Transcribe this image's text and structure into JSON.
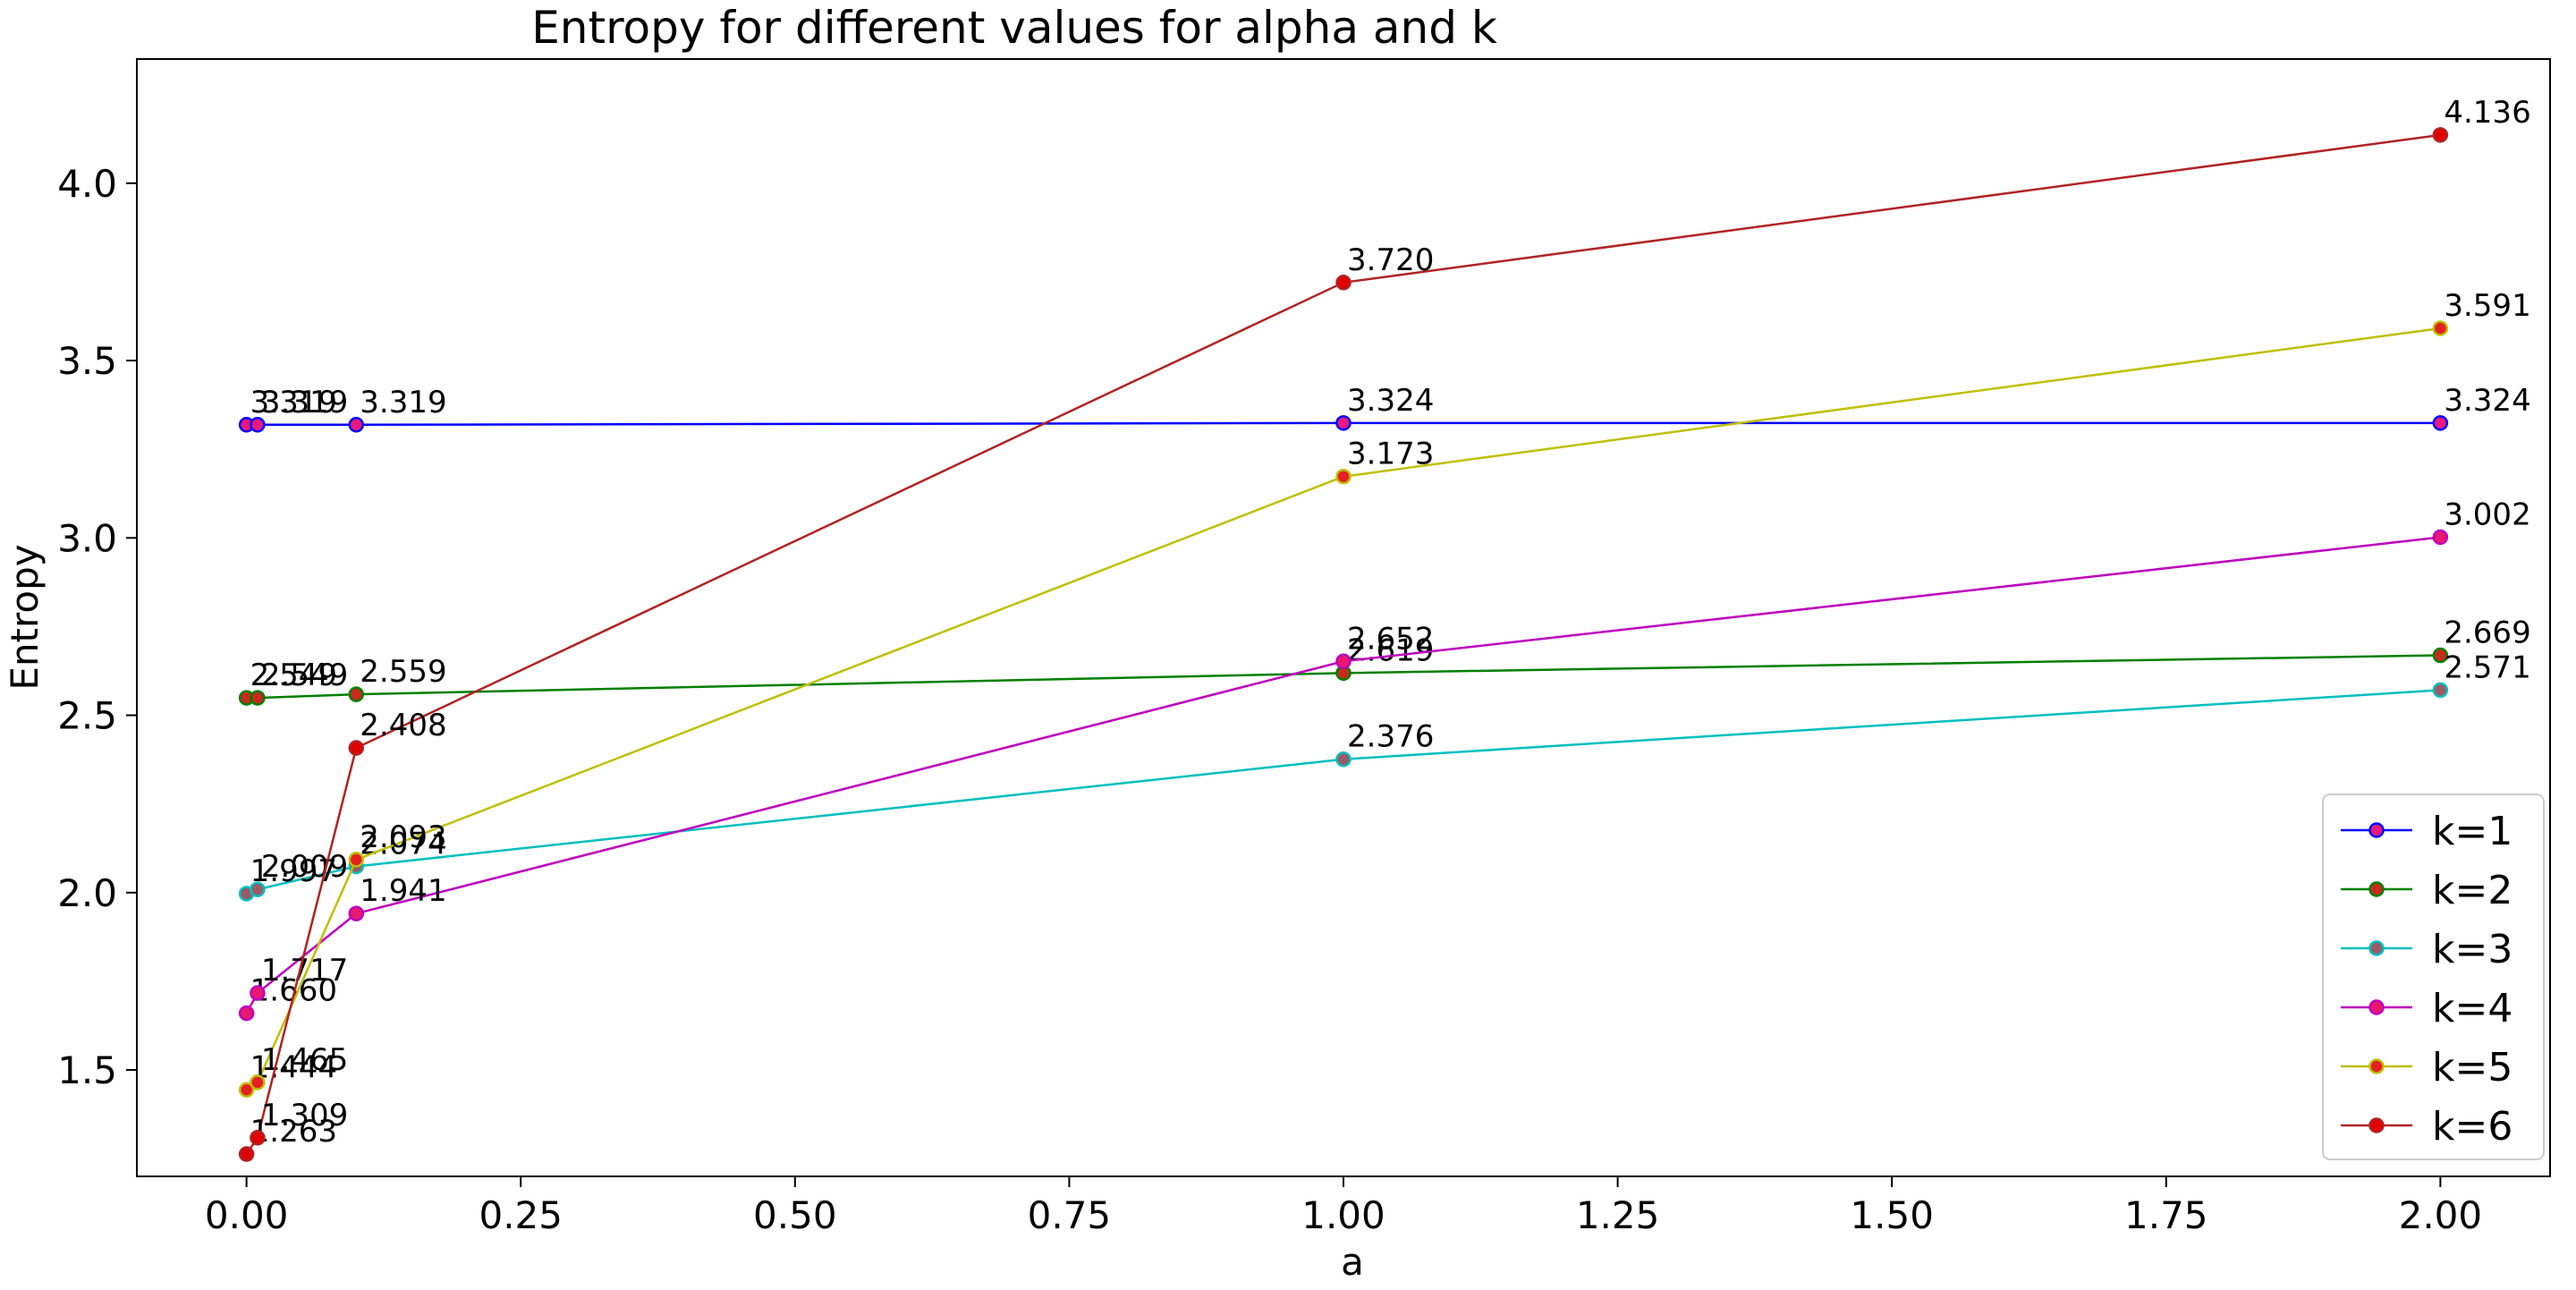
{
  "chart_data": {
    "type": "line",
    "title": "Entropy for different values for alpha and k",
    "xlabel": "a",
    "ylabel": "Entropy",
    "x": [
      0,
      0.01,
      0.1,
      1,
      2
    ],
    "xlim": [
      -0.1,
      2.1
    ],
    "ylim": [
      1.2,
      4.35
    ],
    "xticks": [
      0.0,
      0.25,
      0.5,
      0.75,
      1.0,
      1.25,
      1.5,
      1.75,
      2.0
    ],
    "xtick_labels": [
      "0.00",
      "0.25",
      "0.50",
      "0.75",
      "1.00",
      "1.25",
      "1.50",
      "1.75",
      "2.00"
    ],
    "yticks": [
      1.5,
      2.0,
      2.5,
      3.0,
      3.5,
      4.0
    ],
    "ytick_labels": [
      "1.5",
      "2.0",
      "2.5",
      "3.0",
      "3.5",
      "4.0"
    ],
    "grid": false,
    "legend_position": "lower right",
    "series": [
      {
        "name": "k=1",
        "color": "#0000ff",
        "marker_face": "#e8187f",
        "values": [
          3.319,
          3.319,
          3.319,
          3.324,
          3.324
        ],
        "labels": [
          "3.319",
          "3.319",
          "3.319",
          "3.324",
          "3.324"
        ]
      },
      {
        "name": "k=2",
        "color": "#008000",
        "marker_face": "#c82a1f",
        "values": [
          2.549,
          2.549,
          2.559,
          2.619,
          2.669
        ],
        "labels": [
          "2.549",
          "2.549",
          "2.559",
          "2.619",
          "2.669"
        ]
      },
      {
        "name": "k=3",
        "color": "#00bfbf",
        "marker_face": "#9a5a66",
        "values": [
          1.997,
          2.009,
          2.074,
          2.376,
          2.571
        ],
        "labels": [
          "1.997",
          "2.009",
          "2.074",
          "2.376",
          "2.571"
        ]
      },
      {
        "name": "k=4",
        "color": "#bf00bf",
        "marker_face": "#e8186e",
        "values": [
          1.66,
          1.717,
          1.941,
          2.652,
          3.002
        ],
        "labels": [
          "1.660",
          "1.717",
          "1.941",
          "2.652",
          "3.002"
        ]
      },
      {
        "name": "k=5",
        "color": "#bfbf00",
        "marker_face": "#e42020",
        "values": [
          1.444,
          1.465,
          2.093,
          3.173,
          3.591
        ],
        "labels": [
          "1.444",
          "1.465",
          "2.093",
          "3.173",
          "3.591"
        ]
      },
      {
        "name": "k=6",
        "color": "#b22222",
        "marker_face": "#e00000",
        "values": [
          1.263,
          1.309,
          2.408,
          3.72,
          4.136
        ],
        "labels": [
          "1.263",
          "1.309",
          "2.408",
          "3.720",
          "4.136"
        ]
      }
    ]
  }
}
